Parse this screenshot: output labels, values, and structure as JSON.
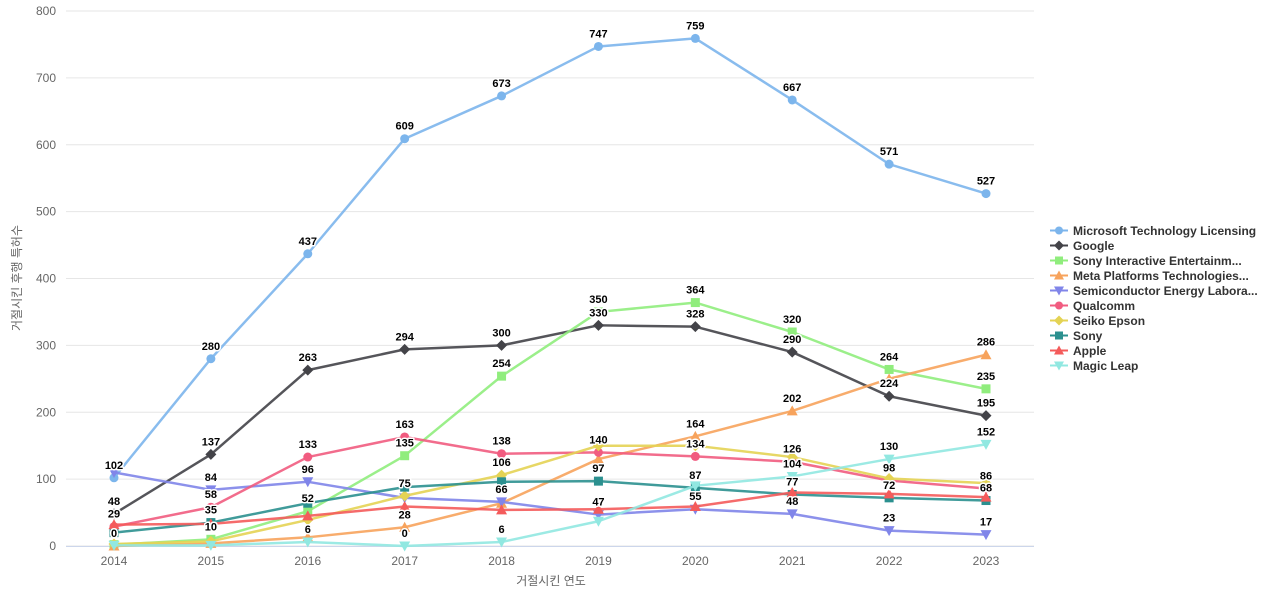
{
  "chart_data": {
    "type": "line",
    "title": "",
    "xlabel": "거절시킨 연도",
    "ylabel": "거절시킨 후행 특허수",
    "ylim": [
      0,
      800
    ],
    "ytick_step": 100,
    "grid": true,
    "legend_position": "right",
    "categories": [
      "2014",
      "2015",
      "2016",
      "2017",
      "2018",
      "2019",
      "2020",
      "2021",
      "2022",
      "2023"
    ],
    "series": [
      {
        "name": "Microsoft Technology Licensing",
        "color": "#7cb5ec",
        "marker": "circle",
        "values": [
          102,
          280,
          437,
          609,
          673,
          747,
          759,
          667,
          571,
          527
        ],
        "labeled": [
          true,
          true,
          true,
          true,
          true,
          true,
          true,
          true,
          true,
          true
        ]
      },
      {
        "name": "Google",
        "color": "#434348",
        "marker": "diamond",
        "values": [
          48,
          137,
          263,
          294,
          300,
          330,
          328,
          290,
          224,
          195
        ],
        "labeled": [
          true,
          true,
          true,
          true,
          true,
          true,
          true,
          true,
          true,
          true
        ]
      },
      {
        "name": "Sony Interactive Entertainm...",
        "color": "#90ed7d",
        "marker": "square",
        "values": [
          2,
          10,
          52,
          135,
          254,
          350,
          364,
          320,
          264,
          235
        ],
        "labeled": [
          false,
          true,
          true,
          true,
          true,
          true,
          true,
          true,
          true,
          true
        ]
      },
      {
        "name": "Meta Platforms Technologies...",
        "color": "#f7a35c",
        "marker": "triangle",
        "values": [
          0,
          4,
          13,
          28,
          64,
          130,
          164,
          202,
          250,
          286
        ],
        "labeled": [
          true,
          false,
          false,
          true,
          false,
          false,
          true,
          true,
          false,
          true
        ]
      },
      {
        "name": "Semiconductor Energy Labora...",
        "color": "#8085e9",
        "marker": "triangle-down",
        "values": [
          110,
          84,
          96,
          72,
          66,
          47,
          55,
          48,
          23,
          17
        ],
        "labeled": [
          false,
          true,
          true,
          false,
          true,
          true,
          true,
          true,
          true,
          true
        ]
      },
      {
        "name": "Qualcomm",
        "color": "#f15c80",
        "marker": "circle",
        "values": [
          29,
          58,
          133,
          163,
          138,
          140,
          134,
          126,
          98,
          86
        ],
        "labeled": [
          true,
          true,
          true,
          true,
          true,
          true,
          true,
          true,
          true,
          true
        ]
      },
      {
        "name": "Seiko Epson",
        "color": "#e4d354",
        "marker": "diamond",
        "values": [
          3,
          7,
          39,
          75,
          106,
          150,
          150,
          133,
          101,
          94
        ],
        "labeled": [
          false,
          false,
          false,
          true,
          true,
          false,
          false,
          false,
          false,
          false
        ]
      },
      {
        "name": "Sony",
        "color": "#2b908f",
        "marker": "square",
        "values": [
          20,
          35,
          64,
          88,
          96,
          97,
          87,
          77,
          72,
          68
        ],
        "labeled": [
          false,
          true,
          false,
          false,
          false,
          true,
          true,
          true,
          true,
          true
        ]
      },
      {
        "name": "Apple",
        "color": "#f45b5b",
        "marker": "triangle",
        "values": [
          32,
          33,
          45,
          59,
          54,
          55,
          59,
          80,
          78,
          73
        ],
        "labeled": [
          false,
          false,
          false,
          false,
          false,
          false,
          false,
          false,
          false,
          false
        ]
      },
      {
        "name": "Magic Leap",
        "color": "#91e8e1",
        "marker": "triangle-down",
        "values": [
          1,
          1,
          6,
          0,
          6,
          37,
          90,
          104,
          130,
          152
        ],
        "labeled": [
          false,
          false,
          true,
          true,
          true,
          false,
          false,
          true,
          true,
          true
        ]
      }
    ]
  }
}
